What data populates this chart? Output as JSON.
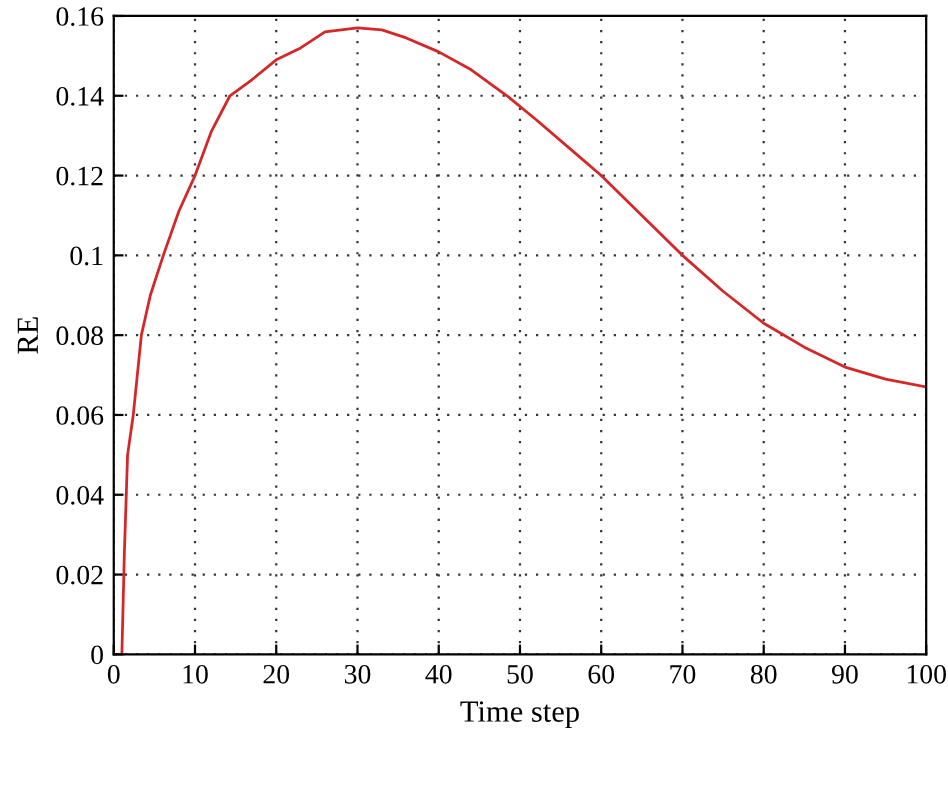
{
  "chart_data": {
    "type": "line",
    "xlabel": "Time step",
    "ylabel": "RE",
    "series": [
      {
        "color": "#d62728",
        "x": [
          1,
          1.3,
          1.7,
          2.4,
          3.4,
          4.5,
          6.1,
          8,
          10,
          12,
          14.3,
          17,
          20,
          23,
          26,
          30,
          33,
          36,
          40,
          44,
          48.4,
          52,
          56,
          60,
          65,
          70,
          75,
          80,
          85,
          90,
          95,
          100
        ],
        "values": [
          0,
          0.025,
          0.05,
          0.06,
          0.08,
          0.09,
          0.1,
          0.111,
          0.12,
          0.131,
          0.14,
          0.144,
          0.149,
          0.152,
          0.156,
          0.157,
          0.1565,
          0.1545,
          0.151,
          0.1465,
          0.14,
          0.134,
          0.127,
          0.12,
          0.11,
          0.1,
          0.091,
          0.083,
          0.077,
          0.072,
          0.069,
          0.067
        ]
      }
    ],
    "xlim": [
      0,
      100
    ],
    "ylim": [
      0,
      0.16
    ],
    "xticks": [
      0,
      10,
      20,
      30,
      40,
      50,
      60,
      70,
      80,
      90,
      100
    ],
    "yticks": [
      0,
      0.02,
      0.04,
      0.06,
      0.08,
      0.1,
      0.12,
      0.14,
      0.16
    ],
    "grid": true
  }
}
